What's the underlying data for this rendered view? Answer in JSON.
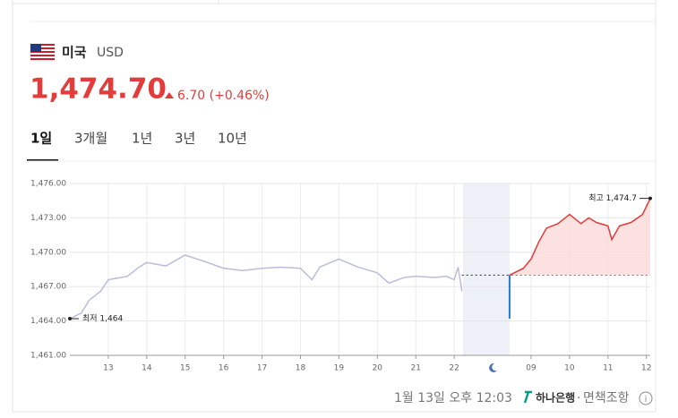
{
  "header": {
    "country": "미국",
    "currency": "USD",
    "price": "1,474.70",
    "change": "6.70 (+0.46%)"
  },
  "tabs": [
    "1일",
    "3개월",
    "1년",
    "3년",
    "10년"
  ],
  "active_tab": 0,
  "footer": {
    "time": "1월 13일 오후 12:03",
    "bank": "하나은행",
    "disclaimer": "면책조항"
  },
  "chart_data": {
    "type": "line",
    "xlim": [
      0,
      15.1
    ],
    "ylim": [
      1461,
      1476
    ],
    "xticks": [
      {
        "value": 1,
        "label": "13"
      },
      {
        "value": 2,
        "label": "14"
      },
      {
        "value": 3,
        "label": "15"
      },
      {
        "value": 4,
        "label": "16"
      },
      {
        "value": 5,
        "label": "17"
      },
      {
        "value": 6,
        "label": "18"
      },
      {
        "value": 7,
        "label": "19"
      },
      {
        "value": 8,
        "label": "20"
      },
      {
        "value": 9,
        "label": "21"
      },
      {
        "value": 10,
        "label": "22"
      },
      {
        "value": 12,
        "label": "09"
      },
      {
        "value": 13,
        "label": "10"
      },
      {
        "value": 14,
        "label": "11"
      },
      {
        "value": 15,
        "label": "12"
      }
    ],
    "yticks": [
      {
        "value": 1461,
        "label": "1,461.00"
      },
      {
        "value": 1464,
        "label": "1,464.00"
      },
      {
        "value": 1467,
        "label": "1,467.00"
      },
      {
        "value": 1470,
        "label": "1,470.00"
      },
      {
        "value": 1473,
        "label": "1,473.00"
      },
      {
        "value": 1476,
        "label": "1,476.00"
      }
    ],
    "grid": true,
    "night_band": [
      10.23,
      11.44
    ],
    "reference_line": 1468,
    "marker": {
      "x": 11.44,
      "from": 1468,
      "to": 1464.2,
      "color": "#1e7fd8"
    },
    "series": [
      {
        "color": "#bcbcdc",
        "x": [
          0,
          0.3,
          0.5,
          0.8,
          1,
          1.5,
          1.8,
          2,
          2.5,
          3,
          3.5,
          4,
          4.5,
          5,
          5.5,
          6,
          6.3,
          6.5,
          7,
          7.5,
          8,
          8.3,
          8.7,
          9,
          9.5,
          9.8,
          10,
          10.1,
          10.2
        ],
        "values": [
          1464.2,
          1464.7,
          1465.8,
          1466.6,
          1467.6,
          1467.9,
          1468.7,
          1469.1,
          1468.8,
          1469.75,
          1469.2,
          1468.6,
          1468.4,
          1468.6,
          1468.7,
          1468.6,
          1467.6,
          1468.7,
          1469.4,
          1468.7,
          1468.2,
          1467.3,
          1467.8,
          1467.9,
          1467.8,
          1467.9,
          1467.6,
          1468.7,
          1466.6
        ]
      },
      {
        "color": "#e03a3a",
        "fill": "#fbd9d9",
        "x": [
          11.44,
          11.8,
          12,
          12.2,
          12.4,
          12.7,
          13,
          13.3,
          13.5,
          13.7,
          14,
          14.1,
          14.3,
          14.6,
          14.9,
          15.1
        ],
        "values": [
          1468.0,
          1468.6,
          1469.4,
          1470.9,
          1472.1,
          1472.5,
          1473.3,
          1472.5,
          1473.0,
          1472.6,
          1472.3,
          1471.1,
          1472.3,
          1472.6,
          1473.3,
          1474.7
        ]
      }
    ],
    "annotations": [
      {
        "text": "최고 1,474.7",
        "x": 15.1,
        "y": 1474.7
      },
      {
        "text": "최저 1,464",
        "x": 0,
        "y": 1464.2
      }
    ]
  }
}
